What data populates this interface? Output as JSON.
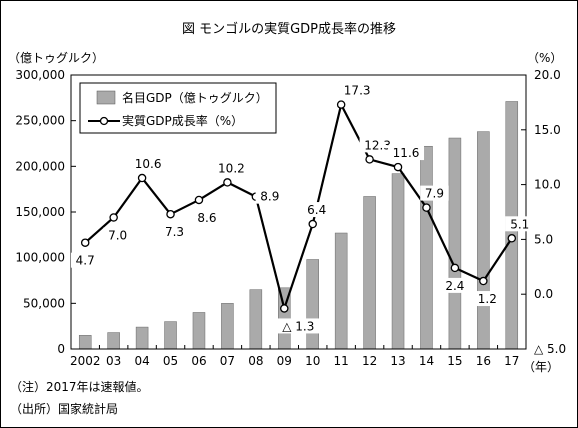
{
  "chart_data": {
    "type": "bar+line",
    "title": "図  モンゴルの実質GDP成長率の推移",
    "left_axis_unit": "（億トゥグルク）",
    "right_axis_unit": "（%）",
    "x_unit": "（年）",
    "categories": [
      "2002",
      "03",
      "04",
      "05",
      "06",
      "07",
      "08",
      "09",
      "10",
      "11",
      "12",
      "13",
      "14",
      "15",
      "16",
      "17"
    ],
    "left_axis": {
      "ylim": [
        0,
        300000
      ],
      "ticks": [
        0,
        50000,
        100000,
        150000,
        200000,
        250000,
        300000
      ],
      "tick_labels": [
        "0",
        "50,000",
        "100,000",
        "150,000",
        "200,000",
        "250,000",
        "300,000"
      ]
    },
    "right_axis": {
      "ylim": [
        -5,
        20
      ],
      "ticks": [
        -5,
        0,
        5,
        10,
        15,
        20
      ],
      "tick_labels": [
        "△ 5.0",
        "0.0",
        "5.0",
        "10.0",
        "15.0",
        "20.0"
      ]
    },
    "series": [
      {
        "name": "名目GDP（億トゥグルク）",
        "type": "bar",
        "axis": "left",
        "color": "#aaaaaa",
        "values": [
          15000,
          18000,
          24000,
          30000,
          40000,
          50000,
          65000,
          67000,
          98000,
          127000,
          167000,
          192000,
          222000,
          231000,
          238000,
          271000
        ]
      },
      {
        "name": "実質GDP成長率（%）",
        "type": "line",
        "axis": "right",
        "color": "#000000",
        "values": [
          4.7,
          7.0,
          10.6,
          7.3,
          8.6,
          10.2,
          8.9,
          -1.3,
          6.4,
          17.3,
          12.3,
          11.6,
          7.9,
          2.4,
          1.2,
          5.1
        ],
        "data_labels": [
          "4.7",
          "7.0",
          "10.6",
          "7.3",
          "8.6",
          "10.2",
          "8.9",
          "△ 1.3",
          "6.4",
          "17.3",
          "12.3",
          "11.6",
          "7.9",
          "2.4",
          "1.2",
          "5.1"
        ]
      }
    ],
    "legend_position": "top-left"
  },
  "notes": {
    "note1": "（注）2017年は速報値。",
    "note2": "（出所）国家統計局"
  }
}
